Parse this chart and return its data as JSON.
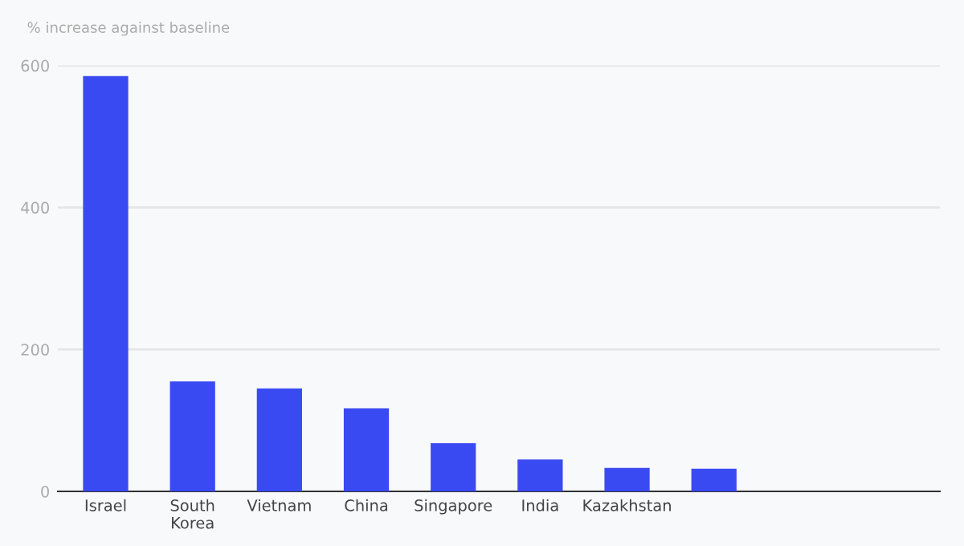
{
  "chart_data": {
    "type": "bar",
    "ylabel": "% increase against baseline",
    "categories": [
      "Israel",
      "South\nKorea",
      "Vietnam",
      "China",
      "Singapore",
      "India",
      "Kazakhstan",
      null
    ],
    "values": [
      585,
      155,
      145,
      117,
      68,
      45,
      33,
      32
    ],
    "color": "#3a4af2",
    "ylim": [
      0,
      600
    ],
    "yticks": [
      0,
      200,
      400,
      600
    ],
    "grid": "y"
  }
}
